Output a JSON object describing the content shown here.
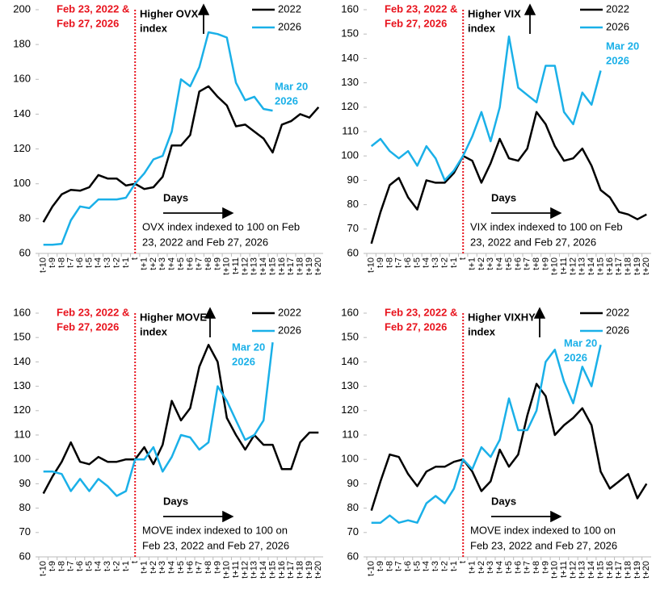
{
  "chart_data": [
    {
      "type": "line",
      "categories": [
        "t-10",
        "t-9",
        "t-8",
        "t-7",
        "t-6",
        "t-5",
        "t-4",
        "t-3",
        "t-2",
        "t-1",
        "t",
        "t+1",
        "t+2",
        "t+3",
        "t+4",
        "t+5",
        "t+6",
        "t+7",
        "t+8",
        "t+9",
        "t+10",
        "t+11",
        "t+12",
        "t+13",
        "t+14",
        "t+15",
        "t+16",
        "t+17",
        "t+18",
        "t+19",
        "t+20"
      ],
      "series": [
        {
          "name": "2022",
          "color": "#000000",
          "values": [
            78,
            87,
            94,
            96.5,
            96,
            98,
            105,
            103,
            103,
            99,
            100,
            97,
            98,
            104,
            122,
            122,
            128,
            153,
            156,
            150,
            145,
            133,
            134,
            130,
            126,
            118,
            134,
            136,
            140,
            138,
            144
          ]
        },
        {
          "name": "2026",
          "color": "#1ab0e8",
          "values": [
            65,
            65,
            65.5,
            79,
            87,
            86,
            91,
            91,
            91,
            92,
            100,
            106,
            114,
            116,
            130,
            160,
            156,
            167,
            187,
            186,
            184,
            158,
            148,
            150,
            143,
            142,
            null,
            null,
            null,
            null,
            null
          ]
        }
      ],
      "ylim": [
        60,
        200
      ],
      "yticks": [
        60,
        80,
        100,
        120,
        140,
        160,
        180,
        200
      ],
      "event_label": [
        "Feb 23, 2022 &",
        "Feb 27, 2026"
      ],
      "higher_label": [
        "Higher OVX",
        "index"
      ],
      "days_label": "Days",
      "note": [
        "OVX index indexed to 100 on Feb",
        "23, 2022 and Feb 27, 2026"
      ],
      "end_label": [
        "Mar 20",
        "2026"
      ]
    },
    {
      "type": "line",
      "categories": [
        "t-10",
        "t-9",
        "t-8",
        "t-7",
        "t-6",
        "t-5",
        "t-4",
        "t-3",
        "t-2",
        "t-1",
        "t",
        "t+1",
        "t+2",
        "t+3",
        "t+4",
        "t+5",
        "t+6",
        "t+7",
        "t+8",
        "t+9",
        "t+10",
        "t+11",
        "t+12",
        "t+13",
        "t+14",
        "t+15",
        "t+16",
        "t+17",
        "t+18",
        "t+19",
        "t+20"
      ],
      "series": [
        {
          "name": "2022",
          "color": "#000000",
          "values": [
            64,
            77,
            88,
            91,
            83,
            78,
            90,
            89,
            89,
            93,
            100,
            98,
            89,
            97,
            107,
            99,
            98,
            103,
            118,
            113,
            104,
            98,
            99,
            103,
            96,
            86,
            83,
            77,
            76,
            74,
            76
          ]
        },
        {
          "name": "2026",
          "color": "#1ab0e8",
          "values": [
            104,
            107,
            102,
            99,
            102,
            96,
            104,
            99,
            90,
            94,
            100,
            108,
            118,
            106,
            120,
            149,
            128,
            125,
            122,
            137,
            137,
            118,
            113,
            126,
            121,
            135,
            null,
            null,
            null,
            null,
            null
          ]
        }
      ],
      "ylim": [
        60,
        160
      ],
      "yticks": [
        60,
        70,
        80,
        90,
        100,
        110,
        120,
        130,
        140,
        150,
        160
      ],
      "event_label": [
        "Feb 23, 2022 &",
        "Feb 27, 2026"
      ],
      "higher_label": [
        "Higher VIX",
        "index"
      ],
      "days_label": "Days",
      "note": [
        "VIX index indexed to 100 on Feb",
        "23, 2022 and Feb 27, 2026"
      ],
      "end_label": [
        "Mar 20",
        "2026"
      ]
    },
    {
      "type": "line",
      "categories": [
        "t-10",
        "t-9",
        "t-8",
        "t-7",
        "t-6",
        "t-5",
        "t-4",
        "t-3",
        "t-2",
        "t-1",
        "t",
        "t+1",
        "t+2",
        "t+3",
        "t+4",
        "t+5",
        "t+6",
        "t+7",
        "t+8",
        "t+9",
        "t+10",
        "t+11",
        "t+12",
        "t+13",
        "t+14",
        "t+15",
        "t+16",
        "t+17",
        "t+18",
        "t+19",
        "t+20"
      ],
      "series": [
        {
          "name": "2022",
          "color": "#000000",
          "values": [
            86,
            93,
            99,
            107,
            99,
            98,
            101,
            99,
            99,
            100,
            100,
            105,
            98,
            106,
            124,
            116,
            121,
            138,
            147,
            140,
            117,
            110,
            104,
            110,
            106,
            106,
            96,
            96,
            107,
            111,
            111
          ]
        },
        {
          "name": "2026",
          "color": "#1ab0e8",
          "values": [
            95,
            95,
            94,
            87,
            92,
            87,
            92,
            89,
            85,
            87,
            100,
            100,
            105,
            95,
            101,
            110,
            109,
            104,
            107,
            130,
            124,
            116,
            108,
            110,
            116,
            148,
            null,
            null,
            null,
            null,
            null
          ]
        }
      ],
      "ylim": [
        60,
        160
      ],
      "yticks": [
        60,
        70,
        80,
        90,
        100,
        110,
        120,
        130,
        140,
        150,
        160
      ],
      "event_label": [
        "Feb 23, 2022 &",
        "Feb 27, 2026"
      ],
      "higher_label": [
        "Higher MOVE",
        "index"
      ],
      "days_label": "Days",
      "note": [
        "MOVE index indexed to 100 on",
        "Feb 23, 2022 and Feb 27, 2026"
      ],
      "end_label": [
        "Mar 20",
        "2026"
      ]
    },
    {
      "type": "line",
      "categories": [
        "t-10",
        "t-9",
        "t-8",
        "t-7",
        "t-6",
        "t-5",
        "t-4",
        "t-3",
        "t-2",
        "t-1",
        "t",
        "t+1",
        "t+2",
        "t+3",
        "t+4",
        "t+5",
        "t+6",
        "t+7",
        "t+8",
        "t+9",
        "t+10",
        "t+11",
        "t+12",
        "t+13",
        "t+14",
        "t+15",
        "t+16",
        "t+17",
        "t+18",
        "t+19",
        "t+20"
      ],
      "series": [
        {
          "name": "2022",
          "color": "#000000",
          "values": [
            79,
            91,
            102,
            101,
            94,
            89,
            95,
            97,
            97,
            99,
            100,
            95,
            87,
            91,
            104,
            97,
            102,
            118,
            131,
            126,
            110,
            114,
            117,
            121,
            114,
            95,
            88,
            91,
            94,
            84,
            90
          ]
        },
        {
          "name": "2026",
          "color": "#1ab0e8",
          "values": [
            74,
            74,
            77,
            74,
            75,
            74,
            82,
            85,
            82,
            88,
            100,
            96,
            105,
            101,
            108,
            125,
            112,
            112,
            120,
            140,
            145,
            132,
            123,
            138,
            130,
            147,
            null,
            null,
            null,
            null,
            null
          ]
        }
      ],
      "ylim": [
        60,
        160
      ],
      "yticks": [
        60,
        70,
        80,
        90,
        100,
        110,
        120,
        130,
        140,
        150,
        160
      ],
      "event_label": [
        "Feb 23, 2022 &",
        "Feb 27, 2026"
      ],
      "higher_label": [
        "Higher VIXHY",
        "index"
      ],
      "days_label": "Days",
      "note": [
        "MOVE index indexed to 100 on",
        "Feb 23, 2022 and Feb 27, 2026"
      ],
      "end_label": [
        "Mar 20",
        "2026"
      ]
    }
  ]
}
